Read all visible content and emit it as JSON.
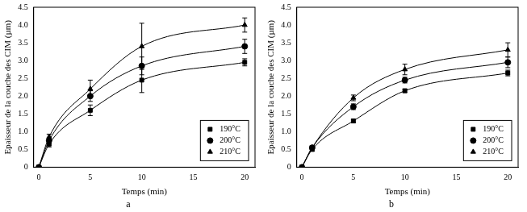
{
  "chart_data": [
    {
      "type": "scatter",
      "title": "a",
      "x_label": "Temps (min)",
      "y_label": "Epaisseur de la couche des CIM (µm)",
      "x": [
        0,
        1,
        5,
        10,
        20
      ],
      "series": [
        {
          "name": "190°C",
          "color": "#000000",
          "marker": "square",
          "line_style": "solid",
          "values": [
            0,
            0.65,
            1.6,
            2.45,
            2.95
          ],
          "errors": [
            null,
            0.08,
            0.15,
            0.35,
            0.1
          ]
        },
        {
          "name": "200°C",
          "color": "#000000",
          "marker": "circle",
          "line_style": "solid",
          "values": [
            0,
            0.75,
            2.0,
            2.85,
            3.4
          ],
          "errors": [
            null,
            0.08,
            0.15,
            0.25,
            0.2
          ]
        },
        {
          "name": "210°C",
          "color": "#000000",
          "marker": "triangle",
          "line_style": "solid",
          "values": [
            0,
            0.85,
            2.2,
            3.4,
            4.0
          ],
          "errors": [
            null,
            0.08,
            0.25,
            0.65,
            0.2
          ]
        }
      ],
      "xlim": [
        -0.5,
        21
      ],
      "xticks": [
        0,
        5,
        10,
        15,
        20
      ],
      "ylim": [
        0,
        4.5
      ],
      "yticks": [
        0,
        0.5,
        {
          "value": 1,
          "label": "1.0"
        },
        1.5,
        {
          "value": 2,
          "label": "2.0"
        },
        2.5,
        {
          "value": 3,
          "label": "3.0"
        },
        3.5,
        {
          "value": 4,
          "label": "4.0"
        },
        4.5
      ],
      "grid": false,
      "legend": "lower right"
    },
    {
      "type": "scatter",
      "title": "b",
      "x_label": "Temps (min)",
      "y_label": "Epaisseur de la couche des CIM (µm)",
      "x": [
        0,
        1,
        5,
        10,
        20
      ],
      "series": [
        {
          "name": "190°C",
          "color": "#000000",
          "marker": "square",
          "line_style": "solid",
          "values": [
            0,
            0.5,
            1.3,
            2.15,
            2.65
          ],
          "errors": [
            null,
            0.05,
            0.05,
            0.05,
            0.08
          ]
        },
        {
          "name": "200°C",
          "color": "#000000",
          "marker": "circle",
          "line_style": "solid",
          "values": [
            0,
            0.55,
            1.7,
            2.45,
            2.95
          ],
          "errors": [
            null,
            0.05,
            0.08,
            0.08,
            0.15
          ]
        },
        {
          "name": "210°C",
          "color": "#000000",
          "marker": "triangle",
          "line_style": "solid",
          "values": [
            0,
            0.55,
            1.95,
            2.75,
            3.3
          ],
          "errors": [
            null,
            0.05,
            0.08,
            0.15,
            0.2
          ]
        }
      ],
      "xlim": [
        -0.5,
        21
      ],
      "xticks": [
        0,
        5,
        10,
        15,
        20
      ],
      "ylim": [
        0,
        4.5
      ],
      "yticks": [
        0,
        0.5,
        {
          "value": 1,
          "label": "1.0"
        },
        1.5,
        {
          "value": 2,
          "label": "2.0"
        },
        2.5,
        {
          "value": 3,
          "label": "3.0"
        },
        3.5,
        {
          "value": 4,
          "label": "4.0"
        },
        4.5
      ],
      "grid": false,
      "legend": "lower right"
    }
  ]
}
